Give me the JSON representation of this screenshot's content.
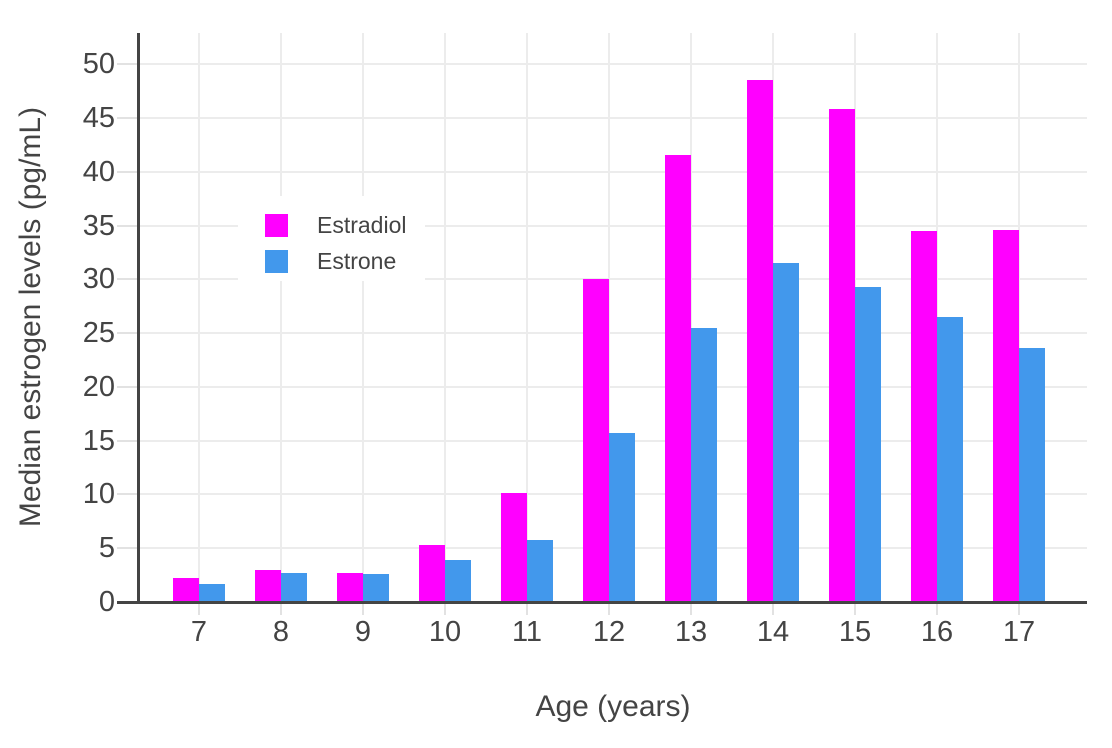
{
  "chart_data": {
    "type": "bar",
    "title": "",
    "xlabel": "Age (years)",
    "ylabel": "Median estrogen levels (pg/mL)",
    "categories": [
      7,
      8,
      9,
      10,
      11,
      12,
      13,
      14,
      15,
      16,
      17
    ],
    "series": [
      {
        "name": "Estradiol",
        "color": "#FF00FF",
        "values": [
          2.2,
          3.0,
          2.7,
          5.3,
          10.1,
          30.0,
          41.6,
          48.5,
          45.8,
          34.5,
          34.6
        ]
      },
      {
        "name": "Estrone",
        "color": "#4298EC",
        "values": [
          1.7,
          2.7,
          2.6,
          3.9,
          5.8,
          15.7,
          25.5,
          31.5,
          29.3,
          26.5,
          23.6
        ]
      }
    ],
    "ylim": [
      0,
      52.9
    ],
    "yticks": [
      0,
      5,
      10,
      15,
      20,
      25,
      30,
      35,
      40,
      45,
      50
    ],
    "grid": true,
    "legend_position": "inside-top-left",
    "background_color": "#FFFFFF",
    "axis_color": "#444444",
    "grid_color": "#ECECEC",
    "text_color": "#444444"
  }
}
